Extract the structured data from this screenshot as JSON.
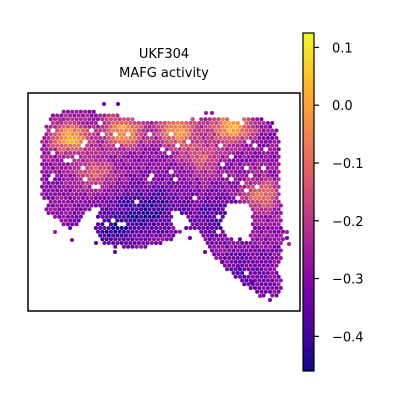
{
  "chart_data": {
    "type": "heatmap",
    "title_line1": "UKF304",
    "title_line2": "MAFG activity",
    "colormap": "plasma",
    "vmin": -0.46,
    "vmax": 0.125,
    "colorbar_ticks": [
      0.1,
      0.0,
      -0.1,
      -0.2,
      -0.3,
      -0.4
    ],
    "colorbar_tick_labels": [
      "0.1",
      "0.0",
      "−0.1",
      "−0.2",
      "−0.3",
      "−0.4"
    ],
    "value_pattern": {
      "base": -0.29,
      "hotspots": [
        {
          "x": 0.12,
          "y": 0.15,
          "level": 0.02
        },
        {
          "x": 0.34,
          "y": 0.12,
          "level": 0.0
        },
        {
          "x": 0.56,
          "y": 0.12,
          "level": -0.02
        },
        {
          "x": 0.78,
          "y": 0.1,
          "level": 0.03
        },
        {
          "x": 0.22,
          "y": 0.33,
          "level": -0.12
        },
        {
          "x": 0.66,
          "y": 0.26,
          "level": -0.14
        },
        {
          "x": 0.9,
          "y": 0.45,
          "level": -0.08
        }
      ],
      "coldspots": [
        {
          "x": 0.45,
          "y": 0.52,
          "level": -0.42
        },
        {
          "x": 0.3,
          "y": 0.62,
          "level": -0.4
        },
        {
          "x": 0.72,
          "y": 0.56,
          "level": -0.38
        },
        {
          "x": 0.82,
          "y": 0.85,
          "level": -0.36
        }
      ]
    }
  }
}
